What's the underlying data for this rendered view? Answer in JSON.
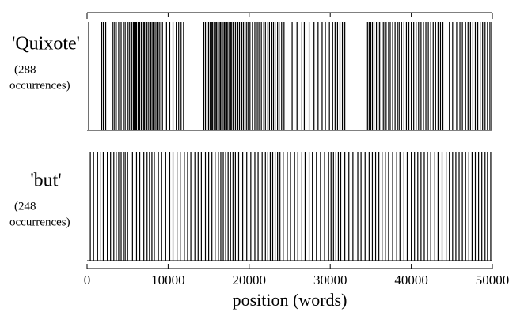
{
  "chart_data": {
    "type": "rug",
    "xlabel": "position (words)",
    "xlim": [
      0,
      50000
    ],
    "xticks": [
      0,
      10000,
      20000,
      30000,
      40000,
      50000
    ],
    "color": "#000000",
    "series": [
      {
        "name": "'Quixote'",
        "note": [
          "(288",
          "occurrences)"
        ],
        "values": [
          200,
          1800,
          2000,
          2300,
          3200,
          3400,
          3600,
          3900,
          4200,
          4500,
          4700,
          5000,
          5200,
          5400,
          5500,
          5700,
          5800,
          6000,
          6100,
          6300,
          6400,
          6500,
          6700,
          6800,
          7000,
          7100,
          7300,
          7400,
          7600,
          7800,
          7900,
          8100,
          8200,
          8400,
          8600,
          8700,
          8900,
          9100,
          9300,
          9800,
          10200,
          10600,
          11000,
          11300,
          11600,
          11900,
          14400,
          14600,
          14800,
          15000,
          15200,
          15400,
          15500,
          15700,
          15900,
          16000,
          16200,
          16400,
          16500,
          16700,
          16900,
          17000,
          17200,
          17300,
          17500,
          17700,
          17800,
          18000,
          18100,
          18300,
          18500,
          18600,
          18800,
          19000,
          19100,
          19300,
          19500,
          19700,
          19900,
          20100,
          20400,
          20700,
          21000,
          21200,
          21500,
          21800,
          22000,
          22300,
          22500,
          22800,
          23000,
          23200,
          23500,
          23700,
          24000,
          24300,
          25300,
          25900,
          26500,
          26800,
          27400,
          28000,
          28500,
          29000,
          29400,
          29900,
          30300,
          30600,
          30900,
          31200,
          31500,
          31800,
          34600,
          34800,
          35000,
          35200,
          35400,
          35700,
          35900,
          36100,
          36400,
          36600,
          36900,
          37200,
          37400,
          37700,
          38000,
          38300,
          38500,
          38800,
          39100,
          39400,
          39700,
          40000,
          40300,
          40600,
          40900,
          41200,
          41500,
          41800,
          42100,
          42400,
          42700,
          43000,
          43300,
          43600,
          43900,
          44700,
          45100,
          45600,
          46000,
          46300,
          46700,
          47000,
          47300,
          47600,
          47900,
          48200,
          48500,
          48800,
          49100,
          49400,
          49700,
          49900
        ]
      },
      {
        "name": "'but'",
        "note": [
          "(248",
          "occurrences)"
        ],
        "values": [
          400,
          800,
          1300,
          1700,
          2000,
          2500,
          2900,
          3300,
          3600,
          3900,
          4200,
          4500,
          4700,
          5000,
          5600,
          6100,
          6500,
          7000,
          7400,
          7700,
          8000,
          8300,
          8800,
          9200,
          9700,
          10200,
          10600,
          11100,
          11500,
          12000,
          12400,
          12800,
          13300,
          13700,
          14100,
          14600,
          15000,
          15400,
          15800,
          16200,
          16500,
          16800,
          17100,
          17400,
          17700,
          18000,
          18300,
          18700,
          19200,
          19700,
          20200,
          20700,
          21100,
          21600,
          22000,
          22300,
          22600,
          22900,
          23200,
          23500,
          23800,
          24200,
          24700,
          25100,
          25600,
          26000,
          26500,
          26900,
          27400,
          27800,
          28300,
          28800,
          29300,
          29800,
          30100,
          30400,
          30700,
          31000,
          31300,
          31800,
          32300,
          32800,
          33400,
          33800,
          34300,
          34800,
          35200,
          35600,
          36000,
          36400,
          36800,
          37200,
          37700,
          38200,
          38600,
          39100,
          39500,
          40000,
          40400,
          40800,
          41200,
          41600,
          42000,
          42400,
          42900,
          43300,
          43800,
          44300,
          44700,
          45100,
          45500,
          45900,
          46300,
          46700,
          47100,
          47500,
          47900,
          48300,
          48700,
          49100,
          49400,
          49800
        ]
      }
    ]
  }
}
